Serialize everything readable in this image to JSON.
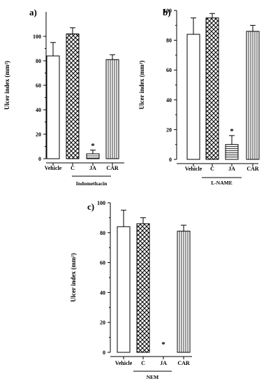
{
  "chart_data": [
    {
      "type": "bar",
      "panel_label": "a)",
      "categories": [
        "Vehicle",
        "C",
        "JA",
        "CAR"
      ],
      "values": [
        84,
        102,
        4,
        81
      ],
      "errors": [
        11,
        5,
        3,
        4
      ],
      "patterns": [
        "empty",
        "crosshatch",
        "horizontal",
        "vertical"
      ],
      "markers": [
        "",
        "",
        "*",
        ""
      ],
      "ylabel": "Ulcer index (mm²)",
      "group_label": "Indomethacin",
      "ylim": [
        0,
        120
      ],
      "yticks": [
        0,
        20,
        40,
        60,
        80,
        100
      ]
    },
    {
      "type": "bar",
      "panel_label": "b)",
      "categories": [
        "Vehicle",
        "C",
        "JA",
        "CAR"
      ],
      "values": [
        84,
        95,
        10,
        86
      ],
      "errors": [
        11,
        3,
        6,
        4
      ],
      "patterns": [
        "empty",
        "crosshatch",
        "horizontal",
        "vertical"
      ],
      "markers": [
        "",
        "",
        "*",
        ""
      ],
      "ylabel": "Ulcer index (mm²)",
      "group_label": "L-NAME",
      "ylim": [
        0,
        100
      ],
      "yticks": [
        0,
        20,
        40,
        60,
        80,
        100
      ]
    },
    {
      "type": "bar",
      "panel_label": "c)",
      "categories": [
        "Vehicle",
        "C",
        "JA",
        "CAR"
      ],
      "values": [
        84,
        86,
        0,
        81
      ],
      "errors": [
        11,
        4,
        0,
        4
      ],
      "patterns": [
        "empty",
        "crosshatch",
        "horizontal",
        "vertical"
      ],
      "markers": [
        "",
        "",
        "*",
        ""
      ],
      "ylabel": "Ulcer index (mm²)",
      "group_label": "NEM",
      "ylim": [
        0,
        100
      ],
      "yticks": [
        0,
        20,
        40,
        60,
        80,
        100
      ]
    }
  ]
}
